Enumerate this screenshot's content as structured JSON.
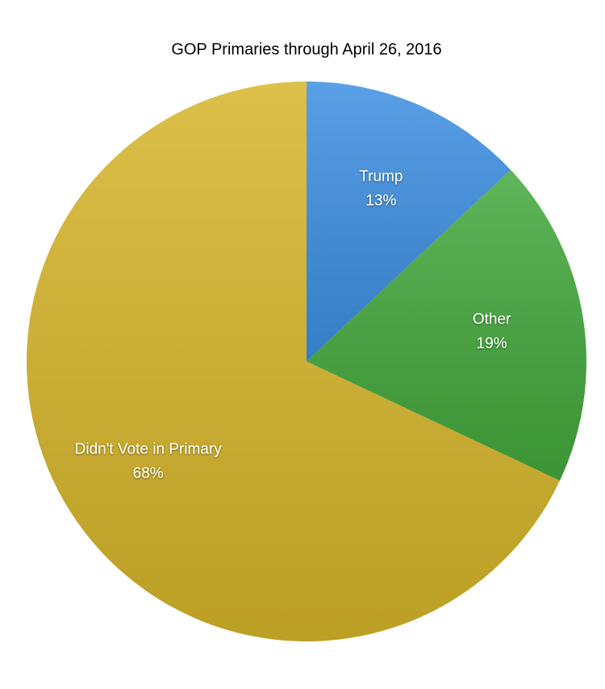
{
  "chart_data": {
    "type": "pie",
    "title": "GOP Primaries through April 26, 2016",
    "categories": [
      "Trump",
      "Other",
      "Didn't Vote in Primary"
    ],
    "values": [
      13,
      19,
      68
    ],
    "value_labels": [
      "13%",
      "19%",
      "68%"
    ],
    "colors": [
      "#3d8fe2",
      "#43a83c",
      "#d6b52a"
    ]
  }
}
